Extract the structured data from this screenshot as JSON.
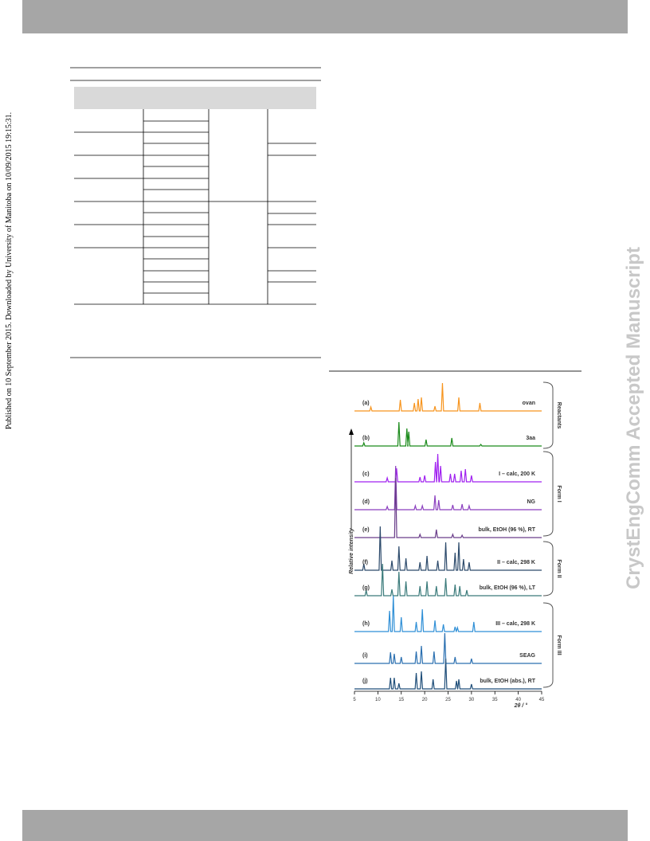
{
  "sidebar_left": "Published on 10 September 2015. Downloaded by University of Manitoba on 10/09/2015 19:15:31.",
  "sidebar_right": "CrystEngComm Accepted Manuscript",
  "figure": {
    "traces": [
      {
        "tag": "(a)",
        "label": "ovan"
      },
      {
        "tag": "(b)",
        "label": "3aa"
      },
      {
        "tag": "(c)",
        "label": "I – calc, 200 K"
      },
      {
        "tag": "(d)",
        "label": "NG"
      },
      {
        "tag": "(e)",
        "label": "bulk, EtOH (96 %), RT"
      },
      {
        "tag": "(f)",
        "label": "II – calc, 298 K"
      },
      {
        "tag": "(g)",
        "label": "bulk, EtOH (96 %), LT"
      },
      {
        "tag": "(h)",
        "label": "III – calc, 298 K"
      },
      {
        "tag": "(i)",
        "label": "SEAG"
      },
      {
        "tag": "(j)",
        "label": "bulk, EtOH (abs.), RT"
      }
    ],
    "groups": [
      "Reactants",
      "Form I",
      "Form II",
      "Form III"
    ],
    "y_axis_label": "Relative intensity",
    "x_axis": {
      "ticks": [
        "5",
        "10",
        "15",
        "20",
        "25",
        "30",
        "35",
        "40",
        "45"
      ],
      "label": "2θ / °"
    }
  }
}
